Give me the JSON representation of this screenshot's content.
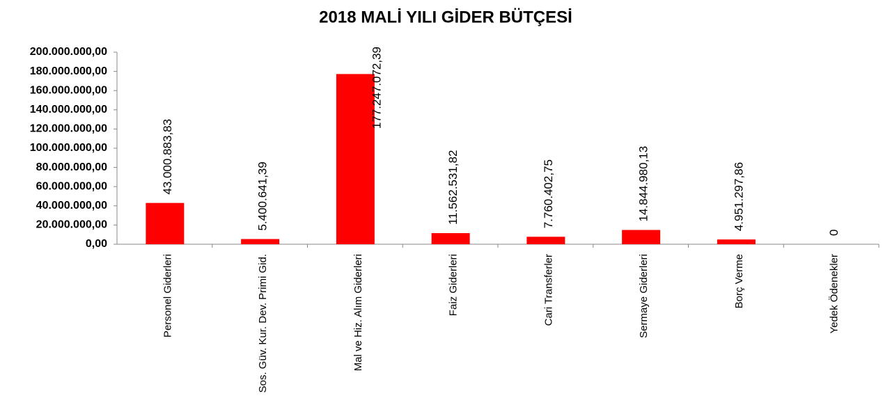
{
  "chart_data": {
    "type": "bar",
    "title": "2018 MALİ YILI GİDER BÜTÇESİ",
    "categories": [
      "Personel Giderleri",
      "Sos. Güv. Kur. Dev. Primi Gid.",
      "Mal ve Hiz. Alım Giderleri",
      "Faiz Giderleri",
      "Cari Transferler",
      "Sermaye Giderleri",
      "Borç Verme",
      "Yedek Ödenekler"
    ],
    "values": [
      43000883.83,
      5400641.39,
      177247072.39,
      11562531.82,
      7760402.75,
      14844980.13,
      4951297.86,
      0
    ],
    "value_labels": [
      "43.000.883,83",
      "5.400.641,39",
      "177.247.072,39",
      "11.562.531,82",
      "7.760.402,75",
      "14.844.980,13",
      "4.951.297,86",
      "0"
    ],
    "color": "#ff0000",
    "ylim": [
      0,
      200000000
    ],
    "yticks": [
      {
        "value": 0,
        "label": "0,00"
      },
      {
        "value": 20000000,
        "label": "20.000.000,00"
      },
      {
        "value": 40000000,
        "label": "40.000.000,00"
      },
      {
        "value": 60000000,
        "label": "60.000.000,00"
      },
      {
        "value": 80000000,
        "label": "80.000.000,00"
      },
      {
        "value": 100000000,
        "label": "100.000.000,00"
      },
      {
        "value": 120000000,
        "label": "120.000.000,00"
      },
      {
        "value": 140000000,
        "label": "140.000.000,00"
      },
      {
        "value": 160000000,
        "label": "160.000.000,00"
      },
      {
        "value": 180000000,
        "label": "180.000.000,00"
      },
      {
        "value": 200000000,
        "label": "200.000.000,00"
      }
    ],
    "grid": false
  }
}
